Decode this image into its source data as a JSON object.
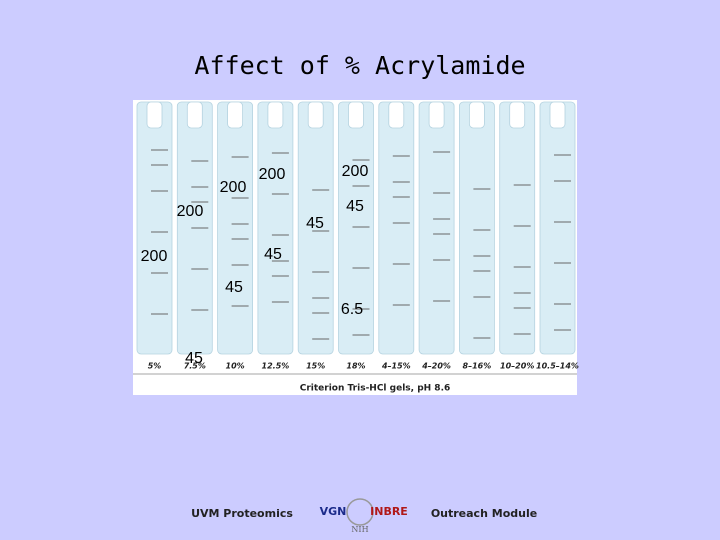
{
  "title": "Affect of % Acrylamide",
  "gel": {
    "lanes": [
      "5%",
      "7.5%",
      "10%",
      "12.5%",
      "15%",
      "18%",
      "4–15%",
      "4–20%",
      "8–16%",
      "10–20%",
      "10.5–14%"
    ],
    "caption": "Criterion Tris-HCl gels, pH 8.6",
    "annotations": [
      "200",
      "200",
      "200",
      "200",
      "200",
      "45",
      "45",
      "45",
      "45",
      "45",
      "6.5"
    ]
  },
  "footer": {
    "left": "UVM Proteomics",
    "logo_left": "VGN",
    "logo_right": "INBRE",
    "logo_bottom": "NIH",
    "right": "Outreach Module"
  }
}
